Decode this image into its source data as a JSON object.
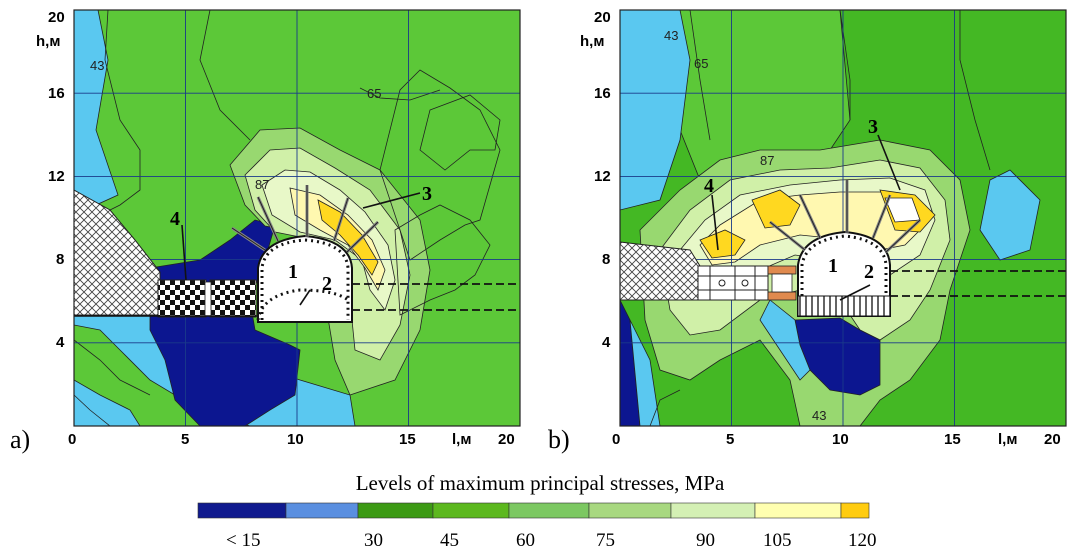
{
  "panels": [
    {
      "letter": "a)",
      "y_axis_label": "h,м",
      "x_axis_label": "l,м",
      "y_ticks": [
        "20",
        "16",
        "12",
        "8",
        "4"
      ],
      "x_ticks": [
        "0",
        "5",
        "10",
        "15",
        "20"
      ],
      "x_tick_values": [
        0,
        5,
        10,
        15,
        20
      ],
      "y_tick_values": [
        20,
        16,
        12,
        8,
        4
      ],
      "xlim": [
        0,
        20
      ],
      "ylim": [
        0,
        20
      ],
      "contour_labels": [
        "43",
        "65",
        "87"
      ],
      "element_labels": [
        "1",
        "2",
        "3",
        "4"
      ]
    },
    {
      "letter": "b)",
      "y_axis_label": "h,м",
      "x_axis_label": "l,м",
      "y_ticks": [
        "20",
        "16",
        "12",
        "8",
        "4"
      ],
      "x_ticks": [
        "0",
        "5",
        "10",
        "15",
        "20"
      ],
      "x_tick_values": [
        0,
        5,
        10,
        15,
        20
      ],
      "y_tick_values": [
        20,
        16,
        12,
        8,
        4
      ],
      "xlim": [
        0,
        20
      ],
      "ylim": [
        0,
        20
      ],
      "contour_labels": [
        "43",
        "65",
        "87",
        "43"
      ],
      "element_labels": [
        "1",
        "2",
        "3",
        "4"
      ]
    }
  ],
  "legend": {
    "title": "Levels of maximum principal stresses, MPa",
    "labels": [
      "< 15",
      "30",
      "45",
      "60",
      "75",
      "90",
      "105",
      "120"
    ],
    "colors": [
      "#101a8e",
      "#5a8fe0",
      "#3c9a14",
      "#5cb81e",
      "#7cc862",
      "#a8d880",
      "#d4f0b4",
      "#ffffb0",
      "#ffcc10"
    ]
  },
  "colors": {
    "dark_blue": "#0c1690",
    "light_blue": "#5ac8f0",
    "green_a": "#5cc838",
    "green_b": "#44b824",
    "light_green": "#98d870",
    "pale_green": "#d0f0a8",
    "pale_yellow": "#fff8b0",
    "yellow": "#ffd820"
  }
}
